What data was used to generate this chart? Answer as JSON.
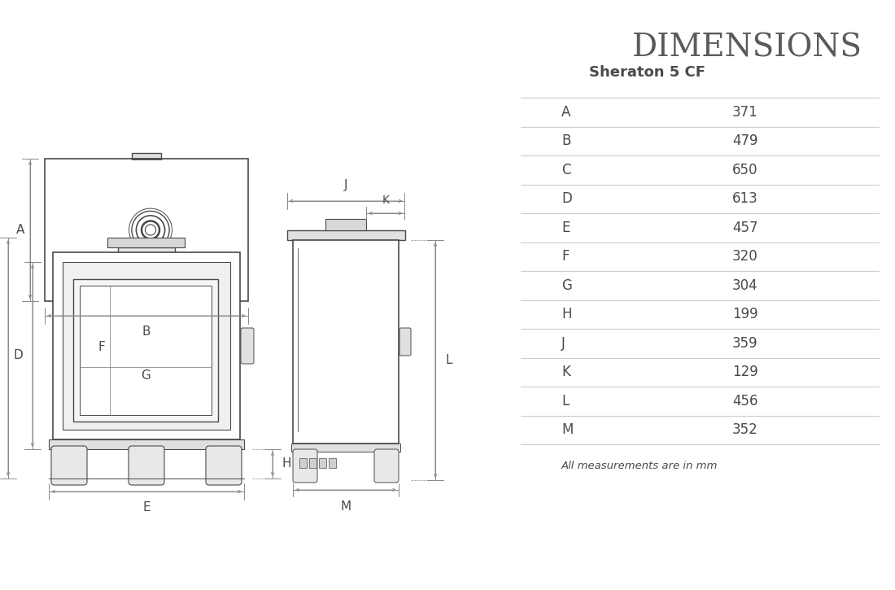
{
  "title": "DIMENSIONS",
  "subtitle": "Sheraton 5 CF",
  "measurements": [
    [
      "A",
      "371"
    ],
    [
      "B",
      "479"
    ],
    [
      "C",
      "650"
    ],
    [
      "D",
      "613"
    ],
    [
      "E",
      "457"
    ],
    [
      "F",
      "320"
    ],
    [
      "G",
      "304"
    ],
    [
      "H",
      "199"
    ],
    [
      "J",
      "359"
    ],
    [
      "K",
      "129"
    ],
    [
      "L",
      "456"
    ],
    [
      "M",
      "352"
    ]
  ],
  "note": "All measurements are in mm",
  "bg_color": "#ffffff",
  "line_color": "#4a4a4a",
  "text_color": "#4a4a4a",
  "dim_line_color": "#888888",
  "table_line_color": "#cccccc",
  "title_color": "#5a5a5a"
}
